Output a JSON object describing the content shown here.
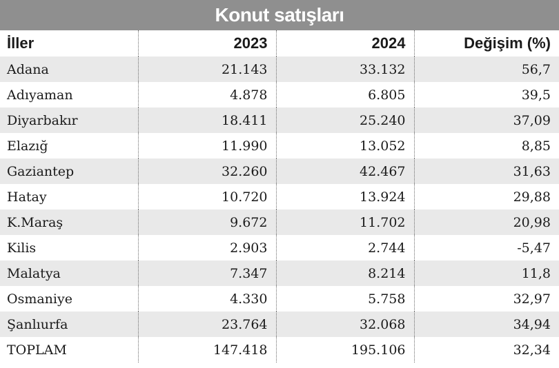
{
  "title": "Konut satışları",
  "headers": [
    "İller",
    "2023",
    "2024",
    "Değişim (%)"
  ],
  "rows": [
    [
      "Adana",
      "21.143",
      "33.132",
      "56,7"
    ],
    [
      "Adıyaman",
      "4.878",
      "6.805",
      "39,5"
    ],
    [
      "Diyarbakır",
      "18.411",
      "25.240",
      "37,09"
    ],
    [
      "Elazığ",
      "11.990",
      "13.052",
      "8,85"
    ],
    [
      "Gaziantep",
      "32.260",
      "42.467",
      "31,63"
    ],
    [
      "Hatay",
      "10.720",
      "13.924",
      "29,88"
    ],
    [
      "K.Maraş",
      "9.672",
      "11.702",
      "20,98"
    ],
    [
      "Kilis",
      "2.903",
      "2.744",
      "-5,47"
    ],
    [
      "Malatya",
      "7.347",
      "8.214",
      "11,8"
    ],
    [
      "Osmaniye",
      "4.330",
      "5.758",
      "32,97"
    ],
    [
      "Şanlıurfa",
      "23.764",
      "32.068",
      "34,94"
    ],
    [
      "TOPLAM",
      "147.418",
      "195.106",
      "32,34"
    ]
  ],
  "colors": {
    "title_background": "#8f8f8f",
    "title_text": "#ffffff",
    "row_stripe": "#e9e9e9",
    "row_plain": "#ffffff"
  }
}
